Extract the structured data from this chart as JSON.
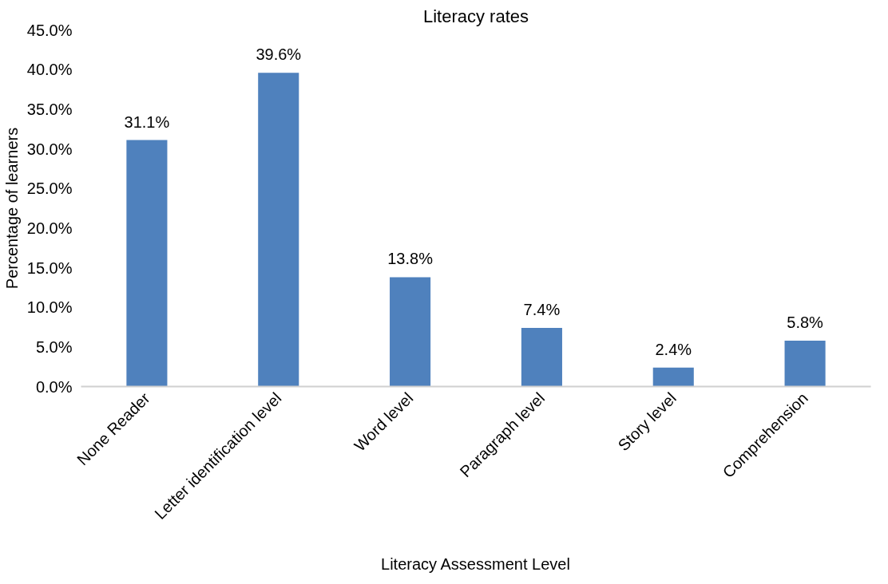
{
  "chart_data": {
    "type": "bar",
    "title": "Literacy rates",
    "xlabel": "Literacy Assessment Level",
    "ylabel": "Percentage of learners",
    "categories": [
      "None Reader",
      "Letter identification level",
      "Word level",
      "Paragraph level",
      "Story level",
      "Comprehension"
    ],
    "values": [
      31.1,
      39.6,
      13.8,
      7.4,
      2.4,
      5.8
    ],
    "value_labels": [
      "31.1%",
      "39.6%",
      "13.8%",
      "7.4%",
      "2.4%",
      "5.8%"
    ],
    "color": "#4f81bd",
    "ylim": [
      0,
      45
    ],
    "yticks": [
      {
        "value": 0,
        "label": "0.0%"
      },
      {
        "value": 5,
        "label": "5.0%"
      },
      {
        "value": 10,
        "label": "10.0%"
      },
      {
        "value": 15,
        "label": "15.0%"
      },
      {
        "value": 20,
        "label": "20.0%"
      },
      {
        "value": 25,
        "label": "25.0%"
      },
      {
        "value": 30,
        "label": "30.0%"
      },
      {
        "value": 35,
        "label": "35.0%"
      },
      {
        "value": 40,
        "label": "40.0%"
      },
      {
        "value": 45,
        "label": "45.0%"
      }
    ],
    "grid": false
  }
}
